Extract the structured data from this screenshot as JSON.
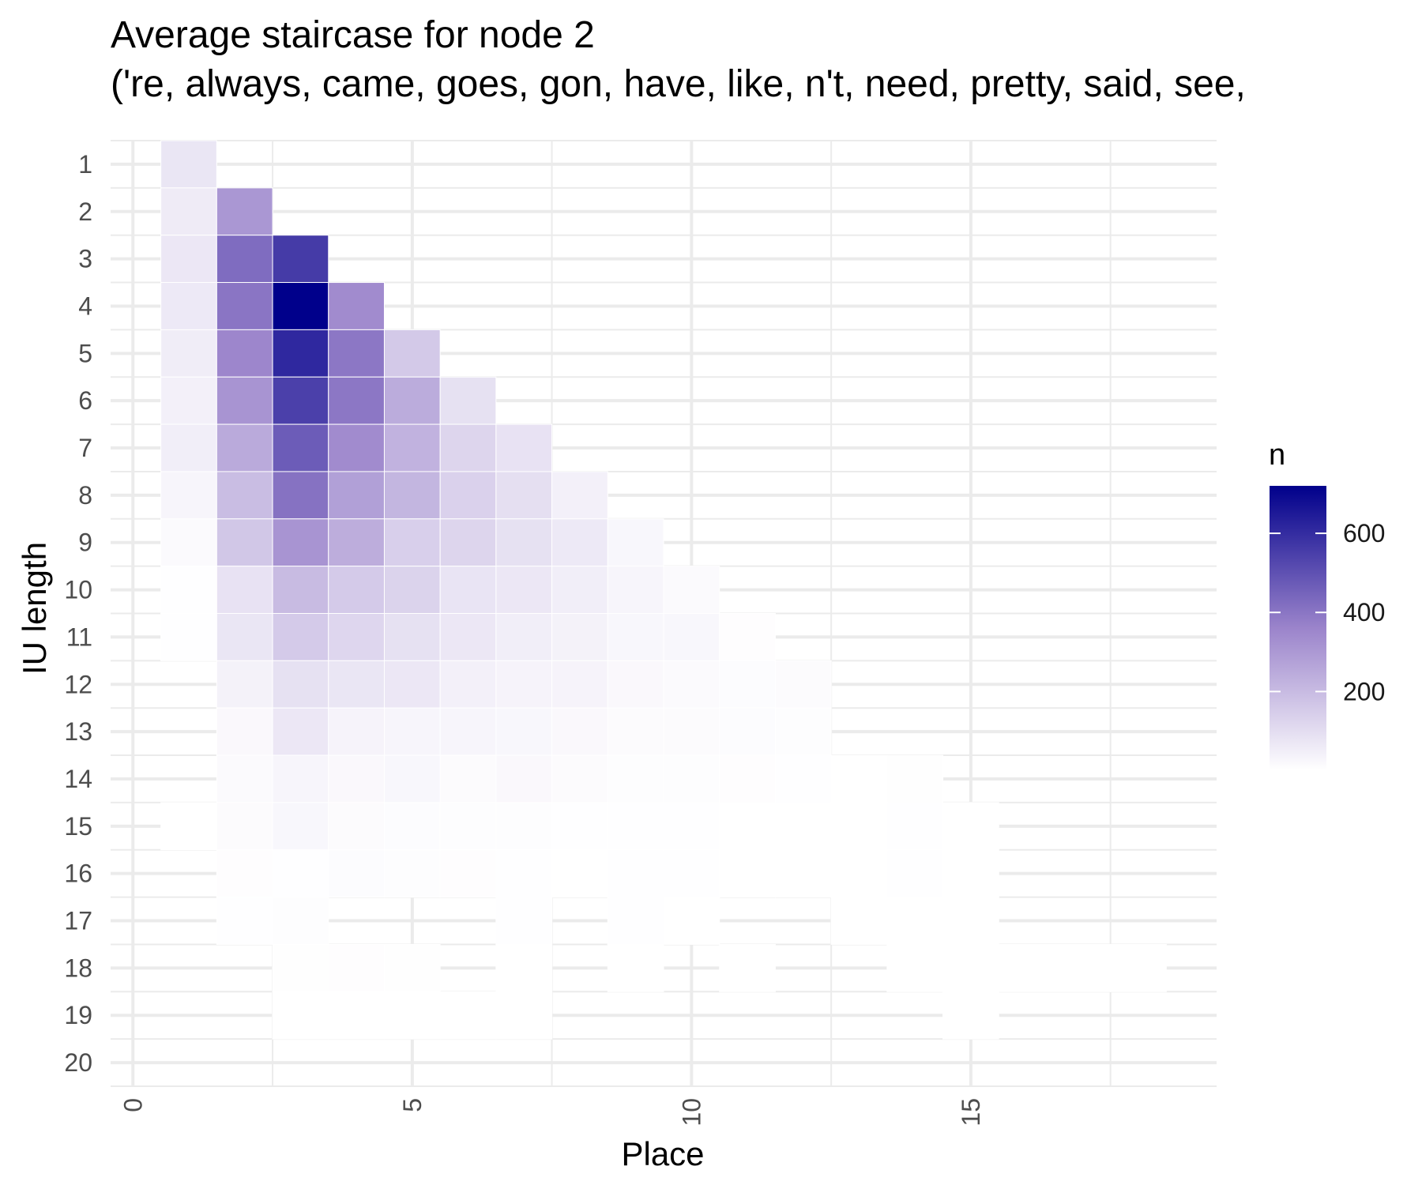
{
  "chart_data": {
    "type": "heatmap",
    "title": "Average staircase for node 2",
    "subtitle": "('re, always, came, goes, gon, have, like, n't, need, pretty, said, see,",
    "xlabel": "Place",
    "ylabel": "IU length",
    "x_ticks": [
      "0",
      "5",
      "10",
      "15"
    ],
    "y_ticks": [
      "1",
      "2",
      "3",
      "4",
      "5",
      "6",
      "7",
      "8",
      "9",
      "10",
      "11",
      "12",
      "13",
      "14",
      "15",
      "16",
      "17",
      "18",
      "19",
      "20"
    ],
    "xlim": [
      -0.4,
      19.4
    ],
    "ylim": [
      0.5,
      20.5
    ],
    "y_reversed": true,
    "x_tick_rotation": -90,
    "grid": true,
    "legend": {
      "title": "n",
      "position": "right",
      "breaks": [
        200,
        400,
        600
      ],
      "labels": [
        "200",
        "400",
        "600"
      ],
      "limits": [
        1,
        720
      ],
      "low_color": "#ffffff",
      "high_color": "#00008b"
    },
    "columns": "x",
    "cells": [
      [
        1,
        1,
        75
      ],
      [
        1,
        2,
        60
      ],
      [
        1,
        3,
        70
      ],
      [
        1,
        4,
        65
      ],
      [
        1,
        5,
        55
      ],
      [
        1,
        6,
        45
      ],
      [
        1,
        7,
        50
      ],
      [
        1,
        8,
        30
      ],
      [
        1,
        9,
        15
      ],
      [
        1,
        10,
        3
      ],
      [
        1,
        11,
        3
      ],
      [
        1,
        15,
        2
      ],
      [
        2,
        2,
        305
      ],
      [
        2,
        3,
        425
      ],
      [
        2,
        4,
        400
      ],
      [
        2,
        5,
        355
      ],
      [
        2,
        6,
        315
      ],
      [
        2,
        7,
        250
      ],
      [
        2,
        8,
        195
      ],
      [
        2,
        9,
        165
      ],
      [
        2,
        10,
        85
      ],
      [
        2,
        11,
        75
      ],
      [
        2,
        12,
        40
      ],
      [
        2,
        13,
        20
      ],
      [
        2,
        14,
        15
      ],
      [
        2,
        15,
        12
      ],
      [
        2,
        16,
        6
      ],
      [
        2,
        17,
        3
      ],
      [
        3,
        3,
        560
      ],
      [
        3,
        4,
        720
      ],
      [
        3,
        5,
        610
      ],
      [
        3,
        6,
        545
      ],
      [
        3,
        7,
        470
      ],
      [
        3,
        8,
        410
      ],
      [
        3,
        9,
        315
      ],
      [
        3,
        10,
        200
      ],
      [
        3,
        11,
        155
      ],
      [
        3,
        12,
        90
      ],
      [
        3,
        13,
        70
      ],
      [
        3,
        14,
        30
      ],
      [
        3,
        15,
        25
      ],
      [
        3,
        16,
        4
      ],
      [
        3,
        17,
        8
      ],
      [
        3,
        18,
        5
      ],
      [
        3,
        19,
        2
      ],
      [
        4,
        4,
        340
      ],
      [
        4,
        5,
        395
      ],
      [
        4,
        6,
        395
      ],
      [
        4,
        7,
        340
      ],
      [
        4,
        8,
        280
      ],
      [
        4,
        9,
        240
      ],
      [
        4,
        10,
        155
      ],
      [
        4,
        11,
        120
      ],
      [
        4,
        12,
        75
      ],
      [
        4,
        13,
        35
      ],
      [
        4,
        14,
        20
      ],
      [
        4,
        15,
        12
      ],
      [
        4,
        16,
        10
      ],
      [
        4,
        18,
        6
      ],
      [
        4,
        19,
        2
      ],
      [
        5,
        5,
        160
      ],
      [
        5,
        6,
        245
      ],
      [
        5,
        7,
        225
      ],
      [
        5,
        8,
        215
      ],
      [
        5,
        9,
        140
      ],
      [
        5,
        10,
        130
      ],
      [
        5,
        11,
        90
      ],
      [
        5,
        12,
        70
      ],
      [
        5,
        13,
        30
      ],
      [
        5,
        14,
        25
      ],
      [
        5,
        15,
        10
      ],
      [
        5,
        16,
        8
      ],
      [
        5,
        18,
        5
      ],
      [
        5,
        19,
        2
      ],
      [
        6,
        6,
        90
      ],
      [
        6,
        7,
        125
      ],
      [
        6,
        8,
        135
      ],
      [
        6,
        9,
        125
      ],
      [
        6,
        10,
        80
      ],
      [
        6,
        11,
        70
      ],
      [
        6,
        12,
        45
      ],
      [
        6,
        13,
        30
      ],
      [
        6,
        14,
        12
      ],
      [
        6,
        15,
        8
      ],
      [
        6,
        16,
        6
      ],
      [
        6,
        19,
        2
      ],
      [
        7,
        7,
        85
      ],
      [
        7,
        8,
        95
      ],
      [
        7,
        9,
        90
      ],
      [
        7,
        10,
        70
      ],
      [
        7,
        11,
        50
      ],
      [
        7,
        12,
        35
      ],
      [
        7,
        13,
        25
      ],
      [
        7,
        14,
        20
      ],
      [
        7,
        15,
        8
      ],
      [
        7,
        16,
        3
      ],
      [
        7,
        17,
        3
      ],
      [
        7,
        18,
        2
      ],
      [
        7,
        19,
        2
      ],
      [
        8,
        8,
        45
      ],
      [
        8,
        9,
        65
      ],
      [
        8,
        10,
        50
      ],
      [
        8,
        11,
        40
      ],
      [
        8,
        12,
        35
      ],
      [
        8,
        13,
        20
      ],
      [
        8,
        14,
        12
      ],
      [
        8,
        15,
        4
      ],
      [
        8,
        16,
        2
      ],
      [
        9,
        9,
        25
      ],
      [
        9,
        10,
        30
      ],
      [
        9,
        11,
        25
      ],
      [
        9,
        12,
        20
      ],
      [
        9,
        13,
        12
      ],
      [
        9,
        14,
        8
      ],
      [
        9,
        15,
        3
      ],
      [
        9,
        16,
        3
      ],
      [
        9,
        17,
        3
      ],
      [
        9,
        18,
        2
      ],
      [
        10,
        10,
        15
      ],
      [
        10,
        11,
        25
      ],
      [
        10,
        12,
        15
      ],
      [
        10,
        13,
        12
      ],
      [
        10,
        14,
        8
      ],
      [
        10,
        15,
        3
      ],
      [
        10,
        16,
        3
      ],
      [
        10,
        17,
        2
      ],
      [
        11,
        11,
        6
      ],
      [
        11,
        12,
        10
      ],
      [
        11,
        13,
        10
      ],
      [
        11,
        14,
        6
      ],
      [
        11,
        15,
        2
      ],
      [
        11,
        16,
        2
      ],
      [
        11,
        18,
        2
      ],
      [
        12,
        12,
        12
      ],
      [
        12,
        13,
        8
      ],
      [
        12,
        14,
        3
      ],
      [
        12,
        15,
        2
      ],
      [
        12,
        16,
        2
      ],
      [
        13,
        14,
        2
      ],
      [
        13,
        15,
        2
      ],
      [
        13,
        16,
        2
      ],
      [
        13,
        17,
        2
      ],
      [
        14,
        14,
        5
      ],
      [
        14,
        15,
        3
      ],
      [
        14,
        16,
        3
      ],
      [
        14,
        17,
        2
      ],
      [
        14,
        18,
        2
      ],
      [
        15,
        15,
        2
      ],
      [
        15,
        16,
        2
      ],
      [
        15,
        17,
        2
      ],
      [
        15,
        18,
        2
      ],
      [
        15,
        19,
        1
      ],
      [
        16,
        18,
        1
      ],
      [
        17,
        18,
        1
      ],
      [
        18,
        18,
        1
      ]
    ]
  }
}
